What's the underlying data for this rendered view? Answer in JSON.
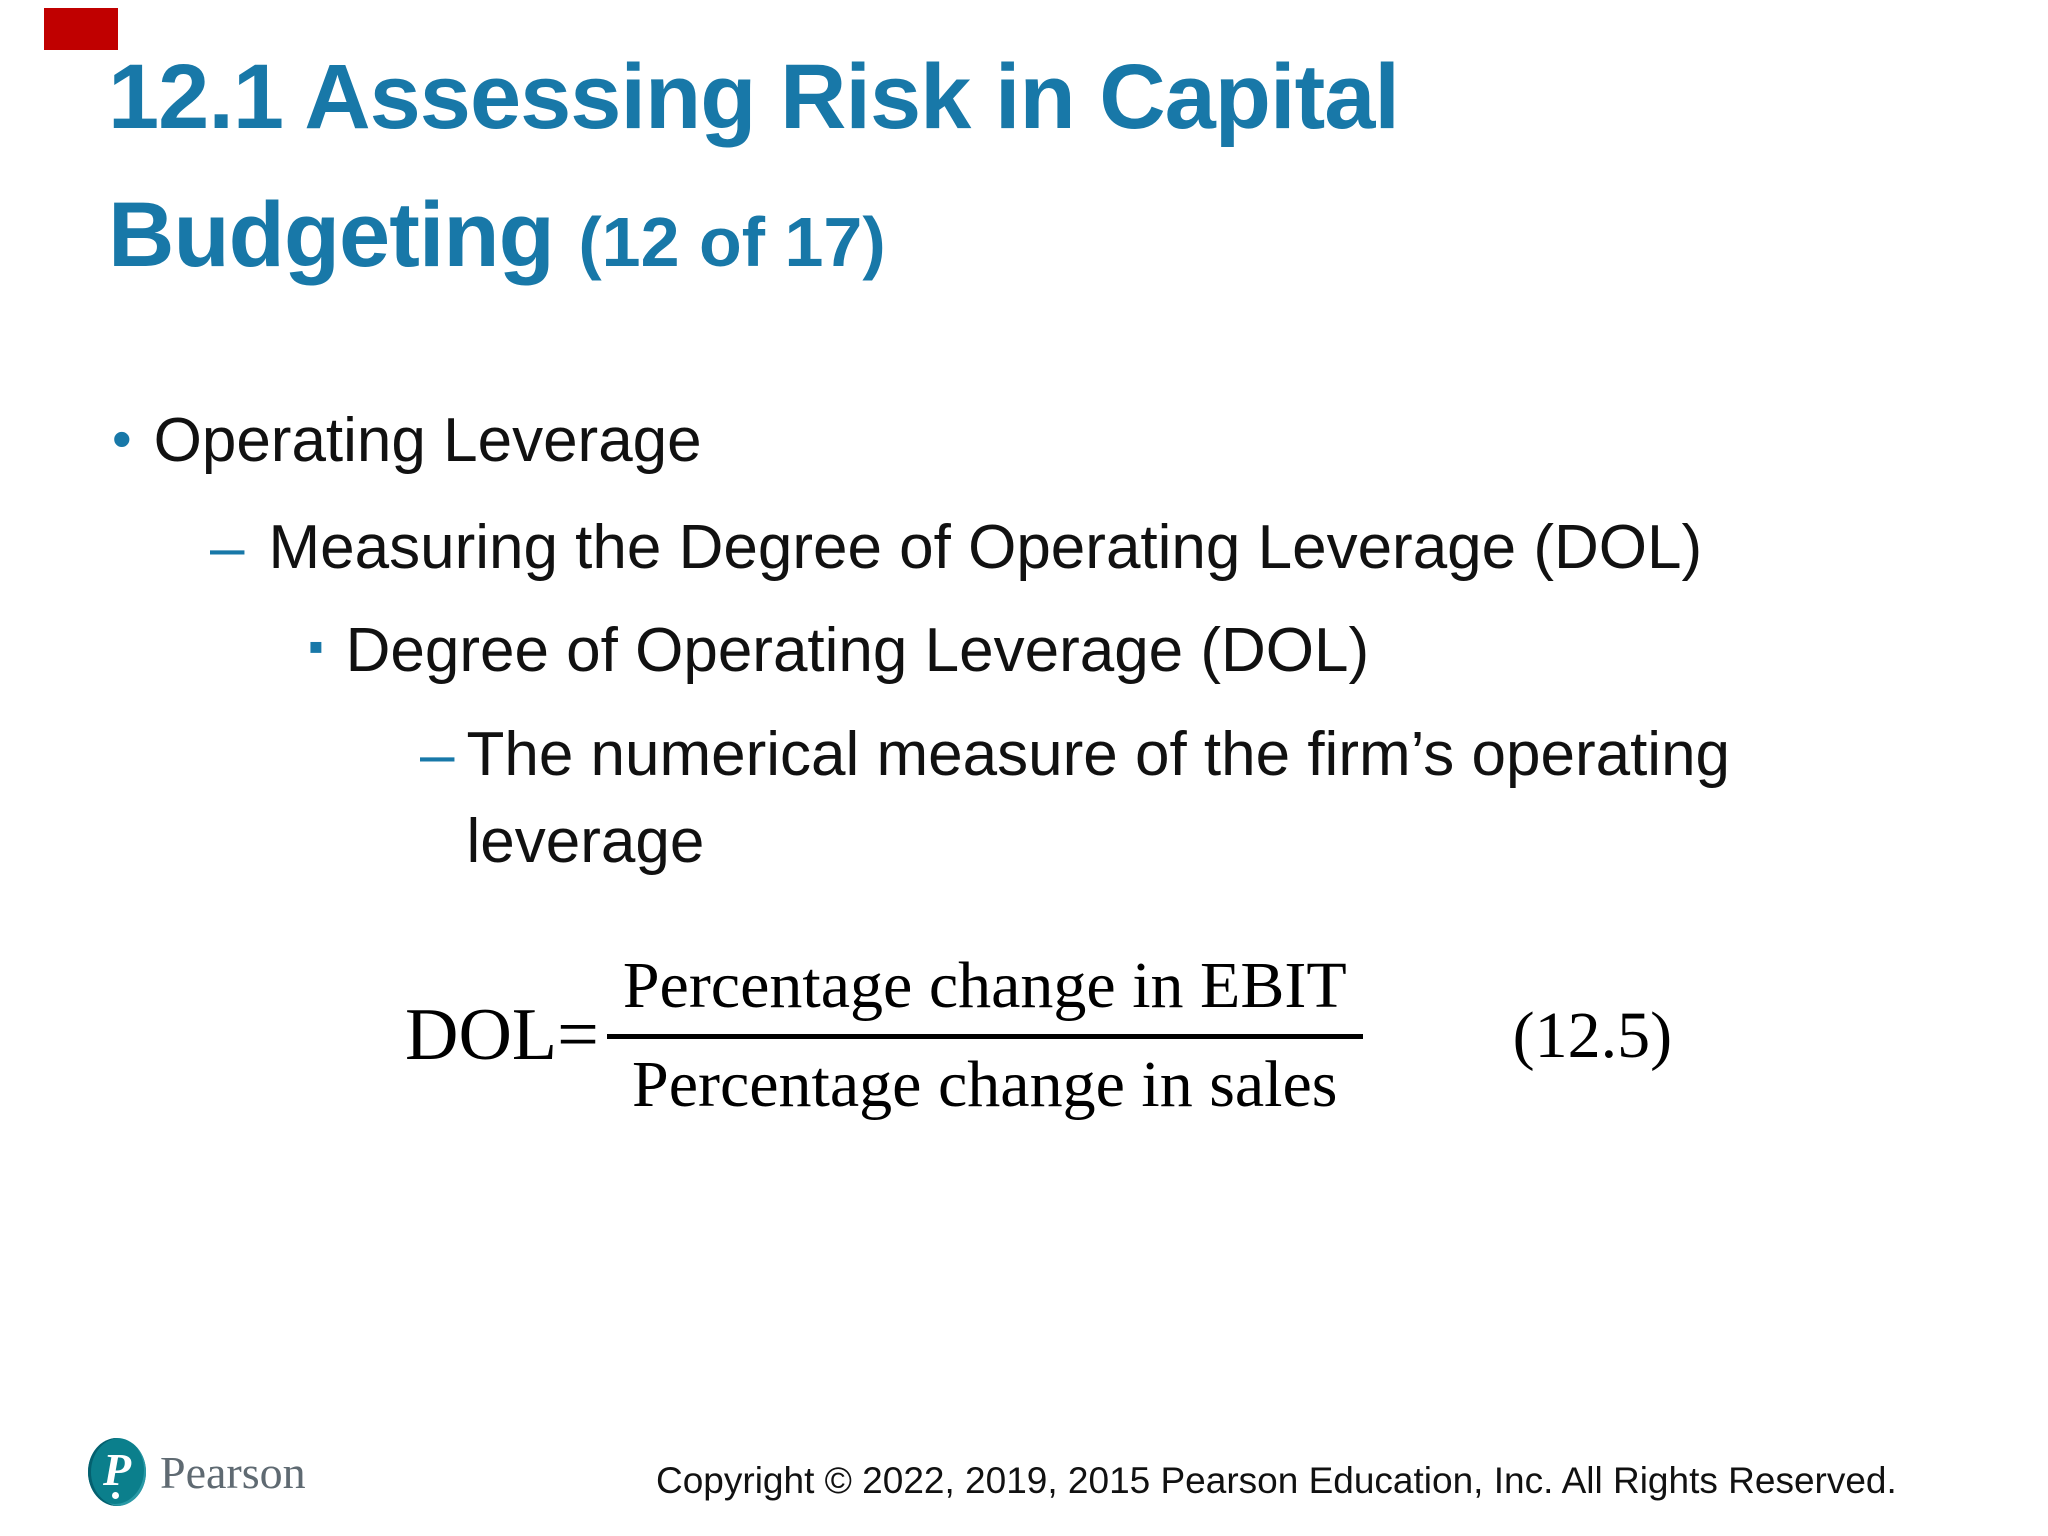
{
  "slide": {
    "accent_color": "#C00000",
    "title_color": "#1878A8",
    "title": {
      "line1": "12.1 Assessing Risk in Capital",
      "line2": "Budgeting",
      "suffix": "(12 of 17)"
    },
    "bullets": [
      {
        "marker": "•",
        "text": "Operating Leverage"
      },
      {
        "marker": "–",
        "text": "Measuring the Degree of Operating Leverage (DOL)"
      },
      {
        "marker": "▪",
        "text": "Degree of Operating Leverage (DOL)"
      },
      {
        "marker": "–",
        "text": "The numerical measure of the firm’s operating leverage"
      }
    ],
    "formula": {
      "lhs": "DOL=",
      "numerator": "Percentage change in EBIT",
      "denominator": "Percentage change in sales",
      "equation_number": "(12.5)"
    },
    "footer": {
      "logo_letter": "P",
      "brand": "Pearson",
      "copyright": "Copyright © 2022, 2019, 2015 Pearson Education, Inc. All Rights Reserved."
    }
  }
}
